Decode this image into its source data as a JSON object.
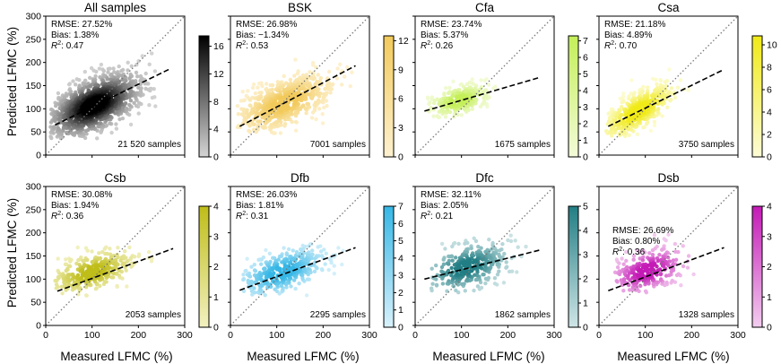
{
  "figure": {
    "xlabel": "Measured LFMC (%)",
    "ylabel": "Predicted LFMC (%)"
  },
  "chart_data": [
    {
      "type": "scatter",
      "title": "All samples",
      "xlim": [
        0,
        300
      ],
      "ylim": [
        0,
        300
      ],
      "xticks": [
        0,
        100,
        200,
        300
      ],
      "yticks": [
        0,
        50,
        100,
        150,
        200,
        250,
        300
      ],
      "rmse": "RMSE: 27.52%",
      "bias": "Bias: 1.38%",
      "r2_label": "R",
      "r2_value": ": 0.47",
      "n": "21 520 samples",
      "fit": {
        "x": [
          20,
          270
        ],
        "y": [
          65,
          187
        ]
      },
      "one_to_one": true,
      "colorbar": {
        "ticks": [
          0,
          4,
          8,
          12,
          16
        ],
        "max": 17.5,
        "low": "#d4d4d4",
        "high": "#000000"
      },
      "cloud": {
        "cx": 105,
        "cy": 108,
        "sx": 48,
        "sy": 33,
        "rho": 0.55,
        "xmin": 10,
        "xmax": 300,
        "ymin": 35,
        "ymax": 240,
        "n": 1300
      }
    },
    {
      "type": "scatter",
      "title": "BSK",
      "xlim": [
        0,
        300
      ],
      "ylim": [
        0,
        300
      ],
      "xticks": [
        0,
        100,
        200,
        300
      ],
      "yticks": [
        0,
        50,
        100,
        150,
        200,
        250,
        300
      ],
      "rmse": "RMSE: 26.98%",
      "bias": "Bias: −1.34%",
      "r2_label": "R",
      "r2_value": ": 0.53",
      "n": "7001 samples",
      "fit": {
        "x": [
          20,
          270
        ],
        "y": [
          62,
          193
        ]
      },
      "one_to_one": true,
      "colorbar": {
        "ticks": [
          0,
          3,
          6,
          9,
          12
        ],
        "max": 12.5,
        "low": "#fdf1cf",
        "high": "#f2ca5c"
      },
      "cloud": {
        "cx": 115,
        "cy": 112,
        "sx": 52,
        "sy": 32,
        "rho": 0.6,
        "xmin": 15,
        "xmax": 300,
        "ymin": 45,
        "ymax": 230,
        "n": 700
      }
    },
    {
      "type": "scatter",
      "title": "Cfa",
      "xlim": [
        0,
        300
      ],
      "ylim": [
        0,
        300
      ],
      "xticks": [
        0,
        100,
        200,
        300
      ],
      "yticks": [
        0,
        50,
        100,
        150,
        200,
        250,
        300
      ],
      "rmse": "RMSE: 23.74%",
      "bias": "Bias: 5.37%",
      "r2_label": "R",
      "r2_value": ": 0.26",
      "n": "1675 samples",
      "fit": {
        "x": [
          20,
          270
        ],
        "y": [
          95,
          168
        ]
      },
      "one_to_one": true,
      "colorbar": {
        "ticks": [
          0,
          1,
          2,
          3,
          4,
          5,
          6,
          7
        ],
        "max": 7.3,
        "low": "#f3fbd8",
        "high": "#c4ef58"
      },
      "cloud": {
        "cx": 95,
        "cy": 118,
        "sx": 32,
        "sy": 17,
        "rho": 0.45,
        "xmin": 25,
        "xmax": 200,
        "ymin": 80,
        "ymax": 165,
        "n": 260
      }
    },
    {
      "type": "scatter",
      "title": "Csa",
      "xlim": [
        0,
        300
      ],
      "ylim": [
        0,
        300
      ],
      "xticks": [
        0,
        100,
        200,
        300
      ],
      "yticks": [
        0,
        50,
        100,
        150,
        200,
        250,
        300
      ],
      "rmse": "RMSE: 21.18%",
      "bias": "Bias: 4.89%",
      "r2_label": "R",
      "r2_value": ": 0.70",
      "n": "3750 samples",
      "fit": {
        "x": [
          20,
          270
        ],
        "y": [
          62,
          185
        ]
      },
      "one_to_one": true,
      "colorbar": {
        "ticks": [
          0,
          2,
          4,
          6,
          8,
          10
        ],
        "max": 10.8,
        "low": "#fdfcd6",
        "high": "#f0ea16"
      },
      "cloud": {
        "cx": 85,
        "cy": 95,
        "sx": 40,
        "sy": 30,
        "rho": 0.72,
        "xmin": 15,
        "xmax": 240,
        "ymin": 40,
        "ymax": 195,
        "n": 480
      }
    },
    {
      "type": "scatter",
      "title": "Csb",
      "xlim": [
        0,
        300
      ],
      "ylim": [
        0,
        300
      ],
      "xticks": [
        0,
        100,
        200,
        300
      ],
      "yticks": [
        0,
        50,
        100,
        150,
        200,
        250,
        300
      ],
      "rmse": "RMSE: 30.08%",
      "bias": "Bias: 1.94%",
      "r2_label": "R",
      "r2_value": ": 0.36",
      "n": "2053 samples",
      "fit": {
        "x": [
          25,
          275
        ],
        "y": [
          74,
          166
        ]
      },
      "one_to_one": true,
      "colorbar": {
        "ticks": [
          0,
          1,
          2,
          3,
          4
        ],
        "max": 4.0,
        "low": "#f2f1c0",
        "high": "#bfbd19"
      },
      "cloud": {
        "cx": 100,
        "cy": 115,
        "sx": 45,
        "sy": 23,
        "rho": 0.5,
        "xmin": 20,
        "xmax": 280,
        "ymin": 60,
        "ymax": 170,
        "n": 360
      }
    },
    {
      "type": "scatter",
      "title": "Dfb",
      "xlim": [
        0,
        300
      ],
      "ylim": [
        0,
        300
      ],
      "xticks": [
        0,
        100,
        200,
        300
      ],
      "yticks": [
        0,
        50,
        100,
        150,
        200,
        250,
        300
      ],
      "rmse": "RMSE: 26.03%",
      "bias": "Bias: 1.81%",
      "r2_label": "R",
      "r2_value": ": 0.31",
      "n": "2295 samples",
      "fit": {
        "x": [
          20,
          270
        ],
        "y": [
          76,
          168
        ]
      },
      "one_to_one": true,
      "colorbar": {
        "ticks": [
          0,
          1,
          2,
          3,
          4,
          5,
          6,
          7
        ],
        "max": 7.0,
        "low": "#d8f1fb",
        "high": "#36b7e6"
      },
      "cloud": {
        "cx": 110,
        "cy": 115,
        "sx": 48,
        "sy": 27,
        "rho": 0.5,
        "xmin": 20,
        "xmax": 290,
        "ymin": 65,
        "ymax": 215,
        "n": 380
      }
    },
    {
      "type": "scatter",
      "title": "Dfc",
      "xlim": [
        0,
        300
      ],
      "ylim": [
        0,
        300
      ],
      "xticks": [
        0,
        100,
        200,
        300
      ],
      "yticks": [
        0,
        50,
        100,
        150,
        200,
        250,
        300
      ],
      "rmse": "RMSE: 32.11%",
      "bias": "Bias: 2.05%",
      "r2_label": "R",
      "r2_value": ": 0.21",
      "n": "1862 samples",
      "fit": {
        "x": [
          20,
          270
        ],
        "y": [
          100,
          163
        ]
      },
      "one_to_one": true,
      "colorbar": {
        "ticks": [
          0,
          1,
          2,
          3,
          4,
          5
        ],
        "max": 5.0,
        "low": "#cfe5e6",
        "high": "#217e84"
      },
      "cloud": {
        "cx": 110,
        "cy": 125,
        "sx": 48,
        "sy": 28,
        "rho": 0.4,
        "xmin": 35,
        "xmax": 280,
        "ymin": 70,
        "ymax": 215,
        "n": 340
      }
    },
    {
      "type": "scatter",
      "title": "Dsb",
      "xlim": [
        0,
        300
      ],
      "ylim": [
        0,
        300
      ],
      "xticks": [
        0,
        100,
        200,
        300
      ],
      "yticks": [
        0,
        50,
        100,
        150,
        200,
        250,
        300
      ],
      "rmse": "RMSE: 26.69%",
      "bias": "Bias: 0.80%",
      "r2_label": "R",
      "r2_value": ": 0.36",
      "n": "1328 samples",
      "fit": {
        "x": [
          20,
          270
        ],
        "y": [
          75,
          168
        ]
      },
      "one_to_one": true,
      "colorbar": {
        "ticks": [
          0,
          1,
          2,
          3,
          4
        ],
        "max": 4.0,
        "low": "#f3cdef",
        "high": "#c41ab6"
      },
      "cloud": {
        "cx": 105,
        "cy": 118,
        "sx": 42,
        "sy": 25,
        "rho": 0.45,
        "xmin": 35,
        "xmax": 255,
        "ymin": 70,
        "ymax": 225,
        "n": 280
      }
    }
  ]
}
